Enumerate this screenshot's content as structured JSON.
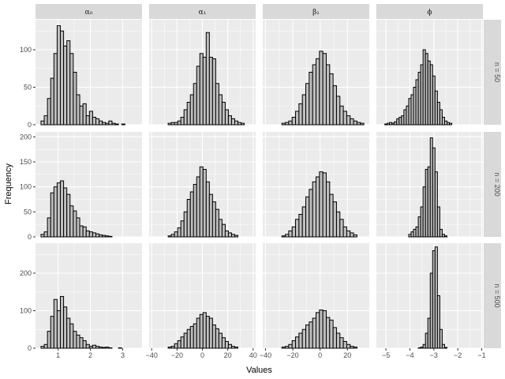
{
  "chart_data": {
    "type": "bar",
    "subtype": "faceted-histogram",
    "xlabel": "Values",
    "ylabel": "Frequency",
    "grid": true,
    "colors": {
      "panel_bg": "#ebebeb",
      "strip_bg": "#d9d9d9",
      "bar_fill": "#bfbfbf",
      "bar_stroke": "#000000",
      "grid": "#ffffff"
    },
    "columns": [
      {
        "label": "α₀",
        "xlim": [
          0.3,
          3.6
        ],
        "ticks": [
          1,
          2,
          3
        ]
      },
      {
        "label": "α₁",
        "xlim": [
          -42,
          42
        ],
        "ticks": [
          -40,
          -20,
          0,
          20,
          40
        ]
      },
      {
        "label": "β₁",
        "xlim": [
          -42,
          36
        ],
        "ticks": [
          -40,
          -20,
          0,
          20
        ]
      },
      {
        "label": "ϕ",
        "xlim": [
          -5.4,
          -0.95
        ],
        "ticks": [
          -5,
          -4,
          -3,
          -2,
          -1
        ]
      }
    ],
    "rows": [
      {
        "label": "n = 50",
        "ylim": [
          0,
          140
        ],
        "yticks": [
          0,
          50,
          100
        ]
      },
      {
        "label": "n = 200",
        "ylim": [
          0,
          210
        ],
        "yticks": [
          0,
          50,
          100,
          150,
          200
        ]
      },
      {
        "label": "n = 500",
        "ylim": [
          0,
          280
        ],
        "yticks": [
          0,
          100,
          200
        ]
      }
    ],
    "panels": [
      [
        {
          "start": 0.47,
          "width": 0.1,
          "values": [
            5,
            12,
            35,
            62,
            95,
            132,
            125,
            105,
            112,
            95,
            70,
            40,
            25,
            28,
            12,
            18,
            10,
            8,
            5,
            3,
            2,
            5,
            2,
            1,
            0,
            1,
            0,
            0
          ]
        },
        {
          "start": -27,
          "width": 2.5,
          "values": [
            2,
            3,
            3,
            5,
            10,
            20,
            30,
            40,
            55,
            78,
            95,
            90,
            123,
            90,
            88,
            55,
            40,
            30,
            20,
            12,
            8,
            5,
            3,
            2
          ]
        },
        {
          "start": -28,
          "width": 2.5,
          "values": [
            2,
            3,
            5,
            10,
            18,
            28,
            40,
            55,
            70,
            80,
            88,
            98,
            95,
            80,
            68,
            52,
            38,
            25,
            18,
            12,
            8,
            5,
            3,
            2
          ]
        },
        {
          "start": -5.05,
          "width": 0.1,
          "values": [
            1,
            2,
            3,
            2,
            4,
            8,
            10,
            12,
            20,
            25,
            35,
            40,
            50,
            60,
            70,
            80,
            100,
            95,
            85,
            80,
            65,
            45,
            30,
            20,
            10,
            5,
            3,
            2
          ]
        }
      ],
      [
        {
          "start": 0.47,
          "width": 0.1,
          "values": [
            5,
            10,
            38,
            88,
            100,
            108,
            112,
            98,
            85,
            62,
            52,
            38,
            22,
            20,
            12,
            10,
            8,
            6,
            4,
            3,
            2,
            1,
            0,
            0,
            0,
            0,
            0,
            0
          ]
        },
        {
          "start": -27,
          "width": 2.5,
          "values": [
            2,
            5,
            10,
            18,
            32,
            50,
            75,
            90,
            105,
            120,
            140,
            135,
            110,
            85,
            70,
            55,
            35,
            25,
            12,
            8,
            5,
            3
          ]
        },
        {
          "start": -28,
          "width": 2.5,
          "values": [
            2,
            5,
            12,
            20,
            35,
            45,
            60,
            80,
            95,
            110,
            120,
            130,
            128,
            110,
            85,
            70,
            50,
            35,
            20,
            12,
            8,
            4
          ]
        },
        {
          "start": -4.05,
          "width": 0.1,
          "values": [
            5,
            10,
            15,
            20,
            40,
            60,
            100,
            135,
            140,
            198,
            178,
            130,
            60,
            15,
            5,
            2
          ]
        }
      ],
      [
        {
          "start": 0.47,
          "width": 0.1,
          "values": [
            5,
            10,
            45,
            85,
            130,
            100,
            138,
            110,
            80,
            65,
            45,
            35,
            28,
            20,
            10,
            5,
            8,
            5,
            3,
            2,
            3,
            1,
            0,
            0,
            1,
            0,
            0,
            0
          ]
        },
        {
          "start": -27,
          "width": 2.5,
          "values": [
            3,
            5,
            12,
            20,
            30,
            40,
            50,
            58,
            65,
            80,
            90,
            95,
            85,
            80,
            62,
            52,
            40,
            28,
            18,
            10,
            5,
            3
          ]
        },
        {
          "start": -28,
          "width": 2.5,
          "values": [
            3,
            5,
            10,
            20,
            30,
            40,
            50,
            62,
            70,
            80,
            95,
            102,
            100,
            82,
            75,
            55,
            40,
            28,
            18,
            10,
            5,
            3
          ]
        },
        {
          "start": -3.65,
          "width": 0.1,
          "values": [
            1,
            3,
            10,
            40,
            80,
            200,
            260,
            270,
            140,
            50,
            10,
            2
          ]
        }
      ]
    ]
  }
}
